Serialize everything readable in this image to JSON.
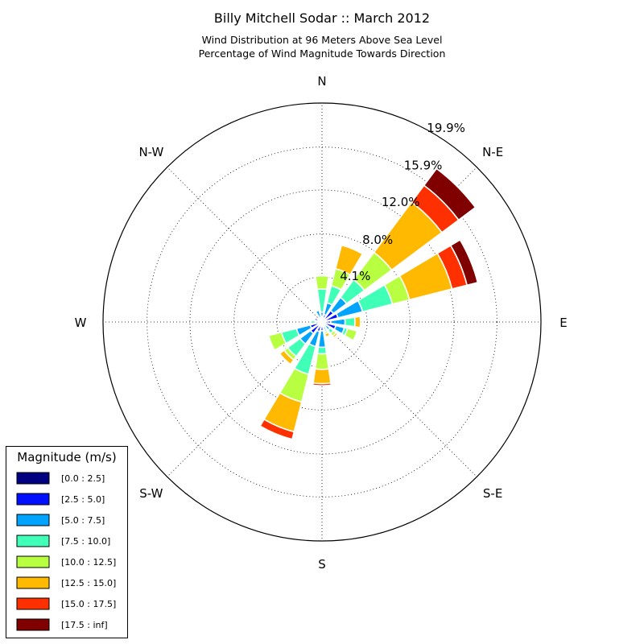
{
  "chart_data": {
    "type": "windrose",
    "title": "Billy Mitchell Sodar :: March 2012",
    "subtitle_lines": [
      "Wind Distribution at 96 Meters Above Sea Level",
      "Percentage of Wind Magnitude Towards Direction"
    ],
    "direction_labels": [
      "N",
      "N-E",
      "E",
      "S-E",
      "S",
      "S-W",
      "W",
      "N-W"
    ],
    "ring_labels": [
      "4.1%",
      "8.0%",
      "12.0%",
      "15.9%",
      "19.9%"
    ],
    "ring_values": [
      4.1,
      8.0,
      12.0,
      15.9,
      19.9
    ],
    "r_max": 19.9,
    "sector_width_deg": 16.5,
    "sector_gap_factor": 0.78,
    "legend": {
      "title": "Magnitude (m/s)",
      "placement": "lower-left",
      "bins": [
        {
          "label": "[0.0 : 2.5]",
          "color": "#000080"
        },
        {
          "label": "[2.5 : 5.0]",
          "color": "#0010ff"
        },
        {
          "label": "[5.0 : 7.5]",
          "color": "#00a4ff"
        },
        {
          "label": "[7.5 : 10.0]",
          "color": "#40ffb7"
        },
        {
          "label": "[10.0 : 12.5]",
          "color": "#b7ff40"
        },
        {
          "label": "[12.5 : 15.0]",
          "color": "#ffb900"
        },
        {
          "label": "[15.0 : 17.5]",
          "color": "#ff3000"
        },
        {
          "label": "[17.5 : inf]",
          "color": "#800000"
        }
      ]
    },
    "sectors": [
      {
        "direction_deg": 0,
        "values": [
          0.1,
          0.4,
          0.4,
          2.1,
          1.2,
          0,
          0,
          0
        ]
      },
      {
        "direction_deg": 22.5,
        "values": [
          0.1,
          0.6,
          1.1,
          1.6,
          1.6,
          2.2,
          0,
          0
        ]
      },
      {
        "direction_deg": 45,
        "values": [
          0.2,
          1.1,
          1.5,
          2.0,
          3.1,
          5.7,
          1.9,
          1.9
        ]
      },
      {
        "direction_deg": 67.5,
        "values": [
          0.2,
          1.3,
          2.3,
          2.8,
          1.6,
          4.0,
          1.4,
          1.0
        ]
      },
      {
        "direction_deg": 90,
        "values": [
          0.2,
          0.6,
          1.3,
          0.9,
          0,
          0.5,
          0,
          0
        ]
      },
      {
        "direction_deg": 112.5,
        "values": [
          0.3,
          1.0,
          0.8,
          0.3,
          0.9,
          0.1,
          0,
          0.1
        ]
      },
      {
        "direction_deg": 135,
        "values": [
          0.2,
          0.2,
          0.5,
          0.4,
          0.3,
          0.2,
          0.1,
          0.1
        ]
      },
      {
        "direction_deg": 157.5,
        "values": [
          0.2,
          0.3,
          0.2,
          0.2,
          0.2,
          0.3,
          0,
          0
        ]
      },
      {
        "direction_deg": 180,
        "values": [
          0.2,
          0.6,
          1.5,
          0.6,
          1.4,
          1.3,
          0.2,
          0
        ]
      },
      {
        "direction_deg": 202.5,
        "values": [
          0.2,
          0.7,
          1.4,
          2.6,
          2.6,
          2.8,
          0.7,
          0
        ]
      },
      {
        "direction_deg": 225,
        "values": [
          0.3,
          1.0,
          1.2,
          1.4,
          0.4,
          0.5,
          0,
          0
        ]
      },
      {
        "direction_deg": 247.5,
        "values": [
          0.2,
          0.9,
          1.3,
          1.4,
          1.2,
          0,
          0,
          0
        ]
      },
      {
        "direction_deg": 270,
        "values": [
          0.1,
          0.2,
          0.3,
          0.4,
          0,
          0,
          0,
          0
        ]
      },
      {
        "direction_deg": 292.5,
        "values": [
          0.2,
          0.5,
          0,
          0,
          0,
          0,
          0,
          0
        ]
      },
      {
        "direction_deg": 315,
        "values": [
          0.1,
          0.4,
          0,
          0,
          0,
          0,
          0,
          0
        ]
      },
      {
        "direction_deg": 337.5,
        "values": [
          0.1,
          0.3,
          0.7,
          0,
          0,
          0,
          0,
          0
        ]
      }
    ]
  }
}
